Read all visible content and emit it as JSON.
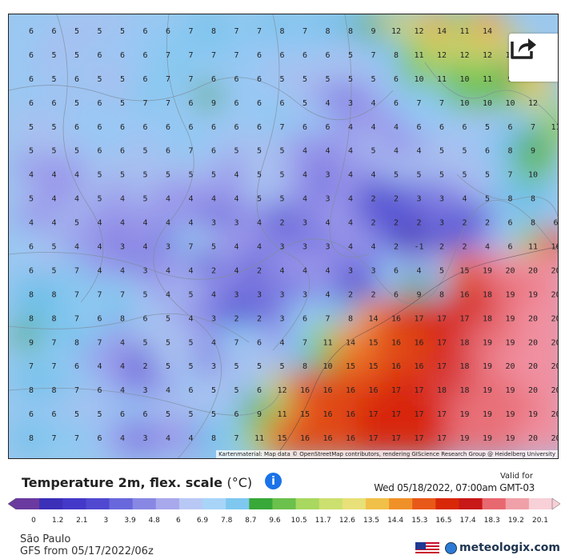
{
  "map": {
    "attribution": "Kartenmaterial: Map data © OpenStreetMap contributors, rendering GIScience Research Group @ Heidelberg University",
    "grid": [
      [
        6,
        6,
        5,
        5,
        5,
        6,
        6,
        7,
        8,
        7,
        7,
        8,
        7,
        8,
        8,
        9,
        12,
        12,
        14,
        11,
        14
      ],
      [
        6,
        5,
        5,
        6,
        6,
        6,
        7,
        7,
        7,
        7,
        6,
        6,
        6,
        6,
        5,
        7,
        8,
        11,
        12,
        12,
        12,
        12
      ],
      [
        6,
        5,
        6,
        5,
        5,
        6,
        7,
        7,
        6,
        6,
        6,
        5,
        5,
        5,
        5,
        5,
        6,
        10,
        11,
        10,
        11,
        9,
        13
      ],
      [
        6,
        6,
        5,
        6,
        5,
        7,
        7,
        6,
        9,
        6,
        6,
        6,
        5,
        4,
        3,
        4,
        6,
        7,
        7,
        10,
        10,
        10,
        12
      ],
      [
        5,
        5,
        6,
        6,
        6,
        6,
        6,
        6,
        6,
        6,
        6,
        7,
        6,
        6,
        4,
        4,
        4,
        6,
        6,
        6,
        5,
        6,
        7,
        11
      ],
      [
        5,
        5,
        5,
        6,
        6,
        5,
        6,
        7,
        6,
        5,
        5,
        5,
        4,
        4,
        4,
        5,
        4,
        4,
        5,
        5,
        6,
        8,
        9
      ],
      [
        4,
        4,
        4,
        5,
        5,
        5,
        5,
        5,
        5,
        4,
        5,
        5,
        4,
        3,
        4,
        4,
        5,
        5,
        5,
        5,
        5,
        7,
        10
      ],
      [
        5,
        4,
        4,
        5,
        4,
        5,
        4,
        4,
        4,
        4,
        5,
        5,
        4,
        3,
        4,
        2,
        2,
        3,
        3,
        4,
        5,
        8,
        8
      ],
      [
        4,
        4,
        5,
        4,
        4,
        4,
        4,
        4,
        3,
        3,
        4,
        2,
        3,
        4,
        4,
        2,
        2,
        2,
        3,
        2,
        2,
        6,
        8,
        6
      ],
      [
        6,
        5,
        4,
        4,
        3,
        4,
        3,
        7,
        5,
        4,
        4,
        3,
        3,
        3,
        4,
        4,
        2,
        -1,
        2,
        2,
        4,
        6,
        11,
        16
      ],
      [
        6,
        5,
        7,
        4,
        4,
        3,
        4,
        4,
        2,
        4,
        2,
        4,
        4,
        4,
        3,
        3,
        6,
        4,
        5,
        15,
        19,
        20,
        20,
        20
      ],
      [
        8,
        8,
        7,
        7,
        7,
        5,
        4,
        5,
        4,
        3,
        3,
        3,
        3,
        4,
        2,
        2,
        6,
        9,
        8,
        16,
        18,
        19,
        19,
        20
      ],
      [
        8,
        8,
        7,
        6,
        8,
        6,
        5,
        4,
        3,
        2,
        2,
        3,
        6,
        7,
        8,
        14,
        16,
        17,
        17,
        17,
        18,
        19,
        20,
        20
      ],
      [
        9,
        7,
        8,
        7,
        4,
        5,
        5,
        5,
        4,
        7,
        6,
        4,
        7,
        11,
        14,
        15,
        16,
        16,
        17,
        18,
        19,
        19,
        20,
        20
      ],
      [
        7,
        7,
        6,
        4,
        4,
        2,
        5,
        5,
        3,
        5,
        5,
        5,
        8,
        10,
        15,
        15,
        16,
        16,
        17,
        18,
        19,
        20,
        20,
        20
      ],
      [
        8,
        8,
        7,
        6,
        4,
        3,
        4,
        6,
        5,
        5,
        6,
        12,
        16,
        16,
        16,
        16,
        17,
        17,
        18,
        18,
        19,
        19,
        20,
        20
      ],
      [
        6,
        6,
        5,
        5,
        6,
        6,
        5,
        5,
        5,
        6,
        9,
        11,
        15,
        16,
        16,
        17,
        17,
        17,
        17,
        19,
        19,
        19,
        19,
        20
      ],
      [
        8,
        7,
        7,
        6,
        4,
        3,
        4,
        4,
        8,
        7,
        11,
        15,
        16,
        16,
        16,
        17,
        17,
        17,
        17,
        19,
        19,
        19,
        20,
        20
      ]
    ]
  },
  "share_icon": "share-icon",
  "title": "Temperature 2m, flex. scale",
  "unit": "(°C)",
  "info_icon": "i",
  "valid_label": "Valid for",
  "valid_date": "Wed 05/18/2022, 07:00am GMT-03",
  "scale": {
    "ticks": [
      "0",
      "1.2",
      "2.1",
      "3",
      "3.9",
      "4.8",
      "6",
      "6.9",
      "7.8",
      "8.7",
      "9.6",
      "10.5",
      "11.7",
      "12.6",
      "13.5",
      "14.4",
      "15.3",
      "16.5",
      "17.4",
      "18.3",
      "19.2",
      "20.1"
    ],
    "colors": [
      "#6b3aa0",
      "#3c2fb8",
      "#4438c8",
      "#5048d0",
      "#6868dc",
      "#8888e4",
      "#a8a8ec",
      "#b8c8f4",
      "#a8d4f8",
      "#7ec8f0",
      "#38a838",
      "#6cc04c",
      "#a8d860",
      "#cce070",
      "#e8e078",
      "#f0c048",
      "#f09028",
      "#e85818",
      "#d82808",
      "#c81818",
      "#e86870",
      "#f0a0a8",
      "#f8d0d8"
    ]
  },
  "location": "São Paulo",
  "model_run": "GFS from 05/17/2022/06z",
  "brand": "meteologix.com",
  "brand_icon": "globe-icon",
  "flag_icon": "us-flag-icon"
}
